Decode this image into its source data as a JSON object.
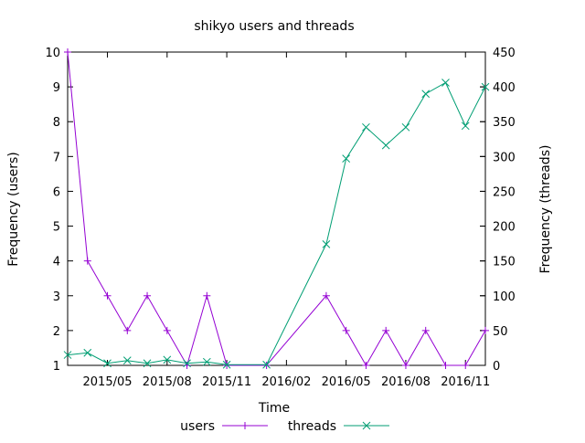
{
  "chart_data": {
    "type": "line",
    "title": "shikyo users and threads",
    "xlabel": "Time",
    "ylabel": "Frequency (users)",
    "y2label": "Frequency (threads)",
    "x": [
      "2015-03",
      "2015-04",
      "2015-05",
      "2015-06",
      "2015-07",
      "2015-08",
      "2015-09",
      "2015-10",
      "2015-11",
      "2015-12",
      "2016-01",
      "2016-02",
      "2016-03",
      "2016-04",
      "2016-05",
      "2016-06",
      "2016-07",
      "2016-08",
      "2016-09",
      "2016-10",
      "2016-11",
      "2016-12"
    ],
    "x_ticks": [
      {
        "date": "2015-05",
        "label": "2015/05"
      },
      {
        "date": "2015-08",
        "label": "2015/08"
      },
      {
        "date": "2015-11",
        "label": "2015/11"
      },
      {
        "date": "2016-02",
        "label": "2016/02"
      },
      {
        "date": "2016-05",
        "label": "2016/05"
      },
      {
        "date": "2016-08",
        "label": "2016/08"
      },
      {
        "date": "2016-11",
        "label": "2016/11"
      }
    ],
    "xlim": [
      "2015-03",
      "2016-12"
    ],
    "ylim": [
      1,
      10
    ],
    "y_ticks": [
      "1",
      "2",
      "3",
      "4",
      "5",
      "6",
      "7",
      "8",
      "9",
      "10"
    ],
    "y2lim": [
      0,
      450
    ],
    "y2_ticks": [
      "0",
      "50",
      "100",
      "150",
      "200",
      "250",
      "300",
      "350",
      "400",
      "450"
    ],
    "grid": false,
    "legend_position": "bottom-center",
    "series": [
      {
        "name": "users",
        "axis": "y",
        "color": "#9400d3",
        "marker": "plus",
        "points": [
          {
            "x": "2015-03",
            "y": 10
          },
          {
            "x": "2015-04",
            "y": 4
          },
          {
            "x": "2015-05",
            "y": 3
          },
          {
            "x": "2015-06",
            "y": 2
          },
          {
            "x": "2015-07",
            "y": 3
          },
          {
            "x": "2015-08",
            "y": 2
          },
          {
            "x": "2015-09",
            "y": 1
          },
          {
            "x": "2015-10",
            "y": 3
          },
          {
            "x": "2015-11",
            "y": 1
          },
          {
            "x": "2016-01",
            "y": 1
          },
          {
            "x": "2016-04",
            "y": 3
          },
          {
            "x": "2016-05",
            "y": 2
          },
          {
            "x": "2016-06",
            "y": 1
          },
          {
            "x": "2016-07",
            "y": 2
          },
          {
            "x": "2016-08",
            "y": 1
          },
          {
            "x": "2016-09",
            "y": 2
          },
          {
            "x": "2016-10",
            "y": 1
          },
          {
            "x": "2016-11",
            "y": 1
          },
          {
            "x": "2016-12",
            "y": 2
          }
        ]
      },
      {
        "name": "threads",
        "axis": "y2",
        "color": "#009e73",
        "marker": "cross",
        "points": [
          {
            "x": "2015-03",
            "y": 15
          },
          {
            "x": "2015-04",
            "y": 18
          },
          {
            "x": "2015-05",
            "y": 3
          },
          {
            "x": "2015-06",
            "y": 7
          },
          {
            "x": "2015-07",
            "y": 3
          },
          {
            "x": "2015-08",
            "y": 8
          },
          {
            "x": "2015-09",
            "y": 3
          },
          {
            "x": "2015-10",
            "y": 5
          },
          {
            "x": "2015-11",
            "y": 1
          },
          {
            "x": "2016-01",
            "y": 1
          },
          {
            "x": "2016-04",
            "y": 174
          },
          {
            "x": "2016-05",
            "y": 297
          },
          {
            "x": "2016-06",
            "y": 342
          },
          {
            "x": "2016-07",
            "y": 316
          },
          {
            "x": "2016-08",
            "y": 342
          },
          {
            "x": "2016-09",
            "y": 390
          },
          {
            "x": "2016-10",
            "y": 406
          },
          {
            "x": "2016-11",
            "y": 344
          },
          {
            "x": "2016-12",
            "y": 400
          }
        ]
      }
    ]
  }
}
